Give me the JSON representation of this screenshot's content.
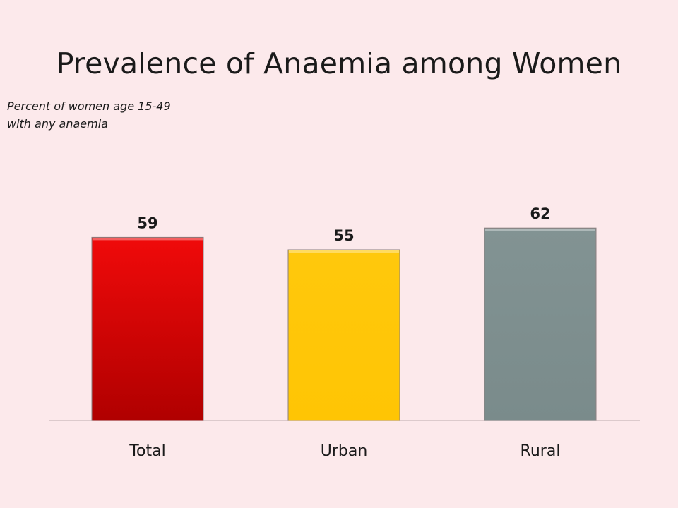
{
  "chart_data": {
    "type": "bar",
    "title": "Prevalence of Anaemia among Women",
    "subtitle": [
      "Percent of women age 15-49",
      "with any anaemia"
    ],
    "categories": [
      "Total",
      "Urban",
      "Rural"
    ],
    "values": [
      59,
      55,
      62
    ],
    "colors": [
      "#e00000",
      "#ffc60a",
      "#7f9090"
    ],
    "ylim": [
      0,
      100
    ],
    "grid": false,
    "legend": "none"
  }
}
